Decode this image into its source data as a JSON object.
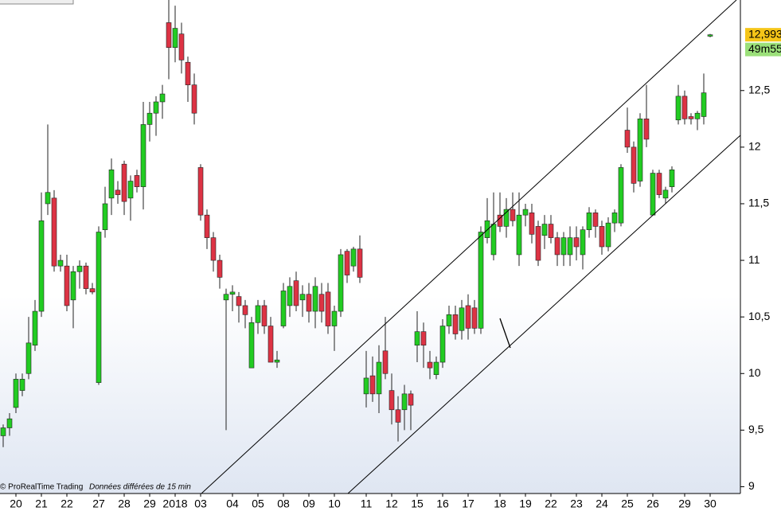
{
  "chart_data": {
    "type": "candlestick",
    "source": "© ProRealTime Trading",
    "note": "Données différées de 15 min",
    "last_price": {
      "value": 12.993,
      "label": "12,993"
    },
    "countdown": "49m55",
    "up_color": "#22cc22",
    "down_color": "#dd3344",
    "ylim": [
      8.94,
      13.3
    ],
    "yticks": [
      9,
      {
        "value": 9.5,
        "label": "9,5"
      },
      10,
      {
        "value": 10.5,
        "label": "10,5"
      },
      11,
      {
        "value": 11.5,
        "label": "11,5"
      },
      12,
      {
        "value": 12.5,
        "label": "12,5"
      }
    ],
    "categories": [
      null,
      null,
      "20",
      null,
      null,
      null,
      "21",
      null,
      null,
      null,
      "22",
      null,
      null,
      null,
      null,
      "27",
      null,
      null,
      null,
      "28",
      null,
      null,
      null,
      "29",
      null,
      null,
      null,
      "2018",
      null,
      null,
      null,
      "03",
      null,
      null,
      null,
      null,
      "04",
      null,
      null,
      null,
      "05",
      null,
      null,
      null,
      "08",
      null,
      null,
      null,
      "09",
      null,
      null,
      null,
      "10",
      null,
      null,
      null,
      null,
      "11",
      null,
      null,
      null,
      "12",
      null,
      null,
      null,
      "15",
      null,
      null,
      null,
      "16",
      null,
      null,
      null,
      "17",
      null,
      null,
      null,
      null,
      "18",
      null,
      null,
      null,
      "19",
      null,
      null,
      null,
      "22",
      null,
      null,
      null,
      "23",
      null,
      null,
      null,
      "24",
      null,
      null,
      null,
      "25",
      null,
      null,
      null,
      "26",
      null,
      null,
      null,
      null,
      "29",
      null,
      null,
      null,
      "30"
    ],
    "open": [
      9.45,
      9.52,
      9.7,
      9.85,
      10.0,
      10.25,
      10.55,
      11.5,
      11.55,
      10.95,
      10.95,
      10.65,
      10.9,
      10.95,
      10.75,
      9.92,
      11.27,
      11.55,
      11.62,
      11.85,
      11.55,
      11.75,
      11.65,
      12.2,
      12.3,
      12.4,
      13.1,
      12.88,
      13.0,
      12.75,
      12.55,
      11.82,
      11.4,
      11.2,
      11.0,
      10.65,
      10.7,
      10.68,
      10.6,
      10.05,
      10.45,
      10.6,
      10.42,
      10.1,
      10.42,
      10.6,
      10.82,
      10.65,
      10.7,
      10.55,
      10.7,
      10.72,
      10.42,
      10.55,
      11.08,
      10.95,
      11.1,
      9.82,
      9.98,
      9.82,
      10.2,
      9.85,
      9.68,
      9.68,
      9.82,
      10.25,
      10.37,
      10.1,
      9.99,
      10.1,
      10.42,
      10.52,
      10.38,
      10.6,
      10.58,
      10.4,
      11.2,
      11.05,
      11.4,
      11.3,
      11.45,
      11.05,
      11.4,
      11.42,
      11.3,
      11.22,
      11.32,
      11.2,
      11.05,
      11.05,
      11.2,
      11.05,
      11.27,
      11.42,
      11.3,
      11.12,
      11.33,
      11.33,
      12.15,
      12.0,
      11.7,
      12.25,
      11.4,
      11.77,
      11.55,
      11.65,
      12.24,
      12.45,
      12.27,
      12.25,
      12.27,
      12.98
    ],
    "high": [
      9.55,
      9.65,
      10.0,
      10.0,
      10.5,
      10.65,
      11.6,
      12.2,
      11.62,
      11.05,
      11.05,
      10.95,
      11.0,
      10.98,
      10.8,
      11.3,
      11.65,
      11.9,
      11.7,
      11.88,
      11.75,
      11.8,
      12.4,
      12.4,
      12.45,
      12.55,
      13.3,
      13.25,
      13.1,
      12.8,
      12.65,
      11.85,
      11.45,
      11.25,
      11.05,
      10.75,
      10.78,
      10.72,
      10.65,
      10.5,
      10.65,
      10.65,
      10.5,
      10.2,
      10.8,
      10.85,
      10.9,
      10.78,
      10.8,
      10.85,
      10.8,
      10.8,
      10.6,
      11.1,
      11.1,
      11.12,
      11.22,
      10.2,
      10.15,
      10.25,
      10.5,
      10.0,
      9.8,
      9.9,
      9.85,
      10.55,
      10.45,
      10.2,
      10.15,
      10.48,
      10.6,
      10.6,
      10.65,
      10.7,
      10.65,
      11.3,
      11.55,
      11.6,
      11.6,
      11.55,
      11.6,
      11.6,
      11.5,
      11.5,
      11.35,
      11.4,
      11.4,
      11.25,
      11.25,
      11.3,
      11.3,
      11.3,
      11.47,
      11.45,
      11.35,
      11.38,
      11.45,
      11.85,
      12.35,
      12.05,
      12.3,
      12.55,
      11.8,
      11.8,
      11.65,
      11.83,
      12.55,
      12.5,
      12.3,
      12.32,
      12.65,
      13.0
    ],
    "low": [
      9.35,
      9.45,
      9.65,
      9.8,
      9.95,
      10.2,
      10.5,
      11.4,
      10.9,
      10.9,
      10.55,
      10.4,
      10.75,
      10.7,
      10.7,
      9.9,
      11.2,
      11.4,
      11.5,
      11.4,
      11.35,
      11.6,
      11.45,
      12.05,
      12.1,
      12.25,
      12.6,
      12.75,
      12.65,
      12.4,
      12.2,
      11.35,
      11.1,
      10.9,
      10.75,
      9.5,
      10.55,
      10.45,
      10.4,
      10.05,
      10.35,
      10.35,
      10.1,
      10.05,
      10.4,
      10.5,
      10.55,
      10.5,
      10.45,
      10.4,
      10.45,
      10.35,
      10.2,
      10.5,
      10.8,
      10.9,
      10.8,
      9.7,
      9.75,
      9.65,
      9.95,
      9.55,
      9.4,
      9.5,
      9.5,
      10.1,
      10.05,
      9.95,
      9.95,
      10.05,
      10.35,
      10.3,
      10.3,
      10.3,
      10.35,
      10.35,
      11.15,
      11.0,
      11.25,
      11.2,
      11.3,
      10.95,
      11.3,
      11.15,
      10.95,
      11.1,
      11.15,
      10.95,
      10.95,
      10.95,
      11.0,
      10.92,
      11.2,
      11.2,
      11.05,
      11.08,
      11.25,
      11.3,
      11.95,
      11.6,
      11.65,
      12.0,
      11.4,
      11.55,
      11.5,
      11.6,
      12.2,
      12.2,
      12.2,
      12.15,
      12.2,
      12.97
    ],
    "close": [
      9.52,
      9.6,
      9.95,
      9.95,
      10.27,
      10.55,
      11.35,
      11.6,
      10.95,
      11.0,
      10.6,
      10.9,
      10.95,
      10.75,
      10.72,
      11.25,
      11.5,
      11.8,
      11.58,
      11.52,
      11.7,
      11.65,
      12.2,
      12.3,
      12.4,
      12.47,
      12.88,
      13.05,
      12.77,
      12.55,
      12.3,
      11.4,
      11.2,
      11.0,
      10.85,
      10.7,
      10.72,
      10.6,
      10.52,
      10.45,
      10.6,
      10.42,
      10.1,
      10.12,
      10.73,
      10.77,
      10.6,
      10.7,
      10.55,
      10.77,
      10.55,
      10.42,
      10.55,
      11.05,
      10.87,
      11.1,
      10.85,
      9.96,
      9.82,
      10.1,
      10.0,
      9.68,
      9.57,
      9.82,
      9.72,
      10.37,
      10.25,
      10.05,
      10.1,
      10.42,
      10.52,
      10.35,
      10.58,
      10.4,
      10.4,
      11.25,
      11.35,
      11.32,
      11.3,
      11.45,
      11.35,
      11.4,
      11.45,
      11.23,
      11.0,
      11.32,
      11.2,
      11.05,
      11.2,
      11.2,
      11.12,
      11.27,
      11.42,
      11.3,
      11.12,
      11.33,
      11.42,
      11.82,
      12.0,
      11.68,
      12.25,
      12.07,
      11.77,
      11.58,
      11.62,
      11.8,
      12.45,
      12.25,
      12.25,
      12.3,
      12.48,
      12.993
    ]
  }
}
